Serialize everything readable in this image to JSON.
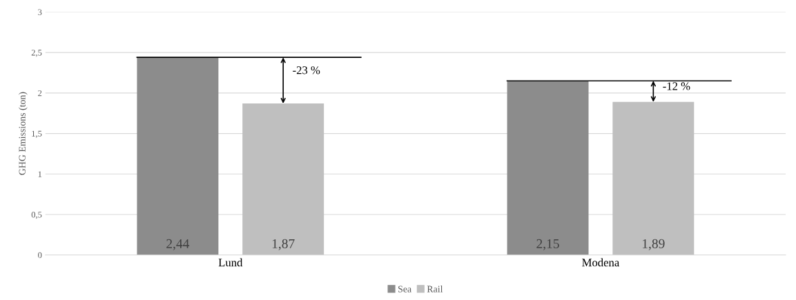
{
  "chart_data": {
    "type": "bar",
    "ylabel": "GHG Emissions (ton)",
    "categories": [
      "Lund",
      "Modena"
    ],
    "series": [
      {
        "name": "Sea",
        "color": "#8c8c8c",
        "values": [
          2.44,
          2.15
        ],
        "value_labels": [
          "2,44",
          "2,15"
        ]
      },
      {
        "name": "Rail",
        "color": "#bfbfbf",
        "values": [
          1.87,
          1.89
        ],
        "value_labels": [
          "1,87",
          "1,89"
        ]
      }
    ],
    "ylim": [
      0,
      3
    ],
    "yticks": [
      0,
      {
        "value": 0.5,
        "label": "0,5"
      },
      1,
      {
        "value": 1.5,
        "label": "1,5"
      },
      2,
      {
        "value": 2.5,
        "label": "2,5"
      },
      3
    ],
    "grid": "y",
    "legend": "bottom",
    "annotations": [
      {
        "text": "-23 %",
        "y": 1.87
      },
      {
        "text": "-12 %",
        "y": 1.89
      }
    ]
  }
}
